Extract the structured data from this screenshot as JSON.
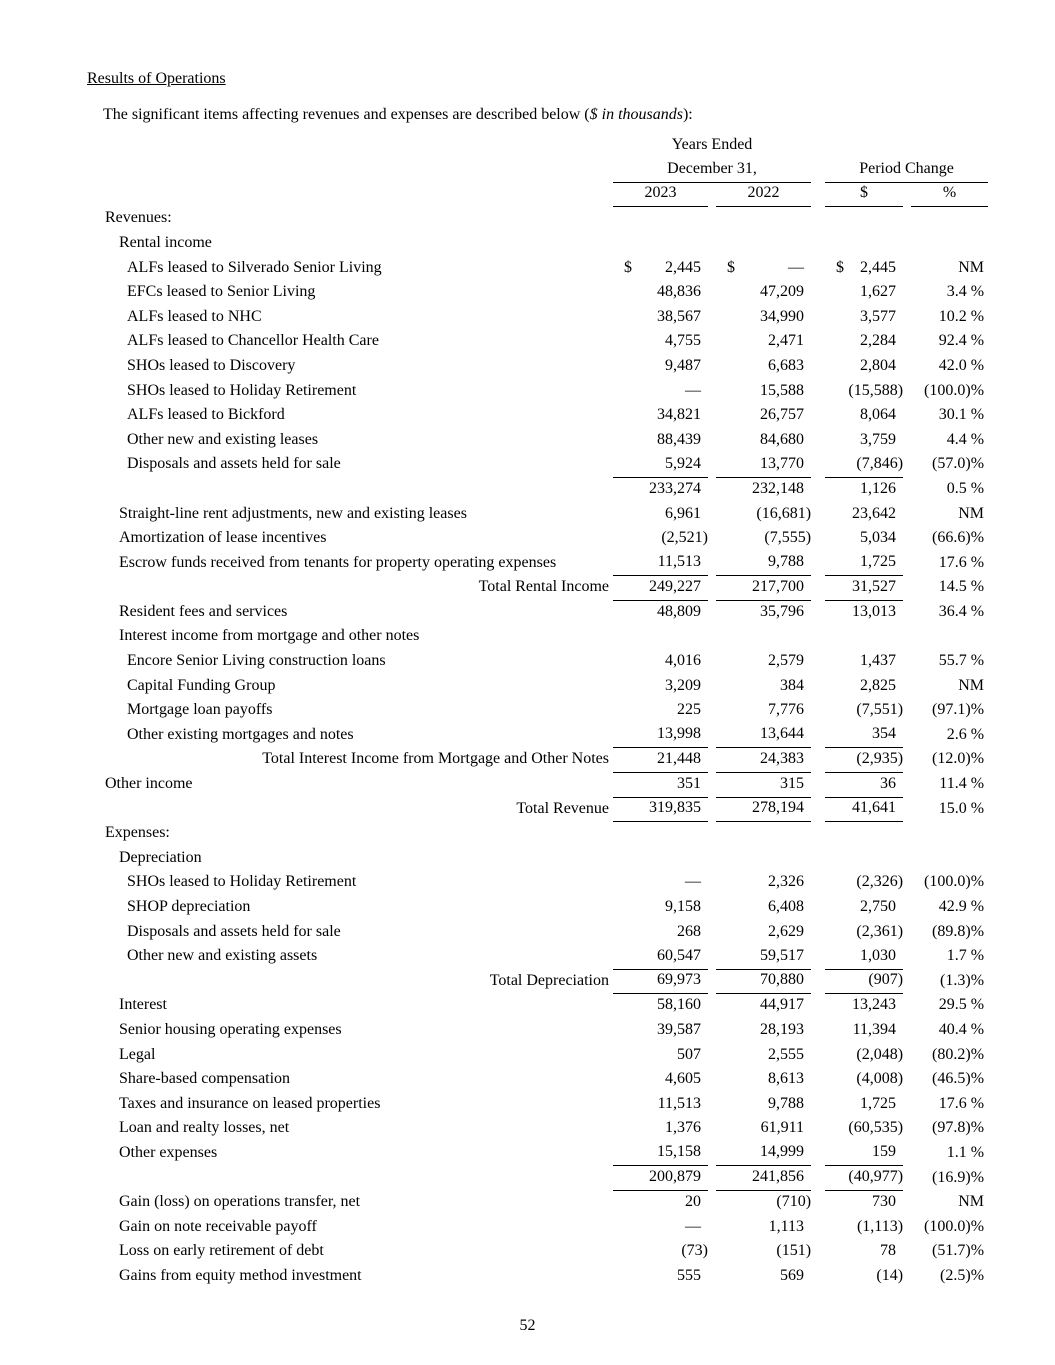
{
  "page": {
    "title": "Results of Operations",
    "intro": {
      "prefix": "The significant items affecting revenues and expenses are described below (",
      "italic": "$ in thousands",
      "suffix": "):"
    },
    "page_number": "52"
  },
  "table": {
    "header": {
      "years_ended": "Years Ended",
      "december": "December 31,",
      "period_change": "Period Change",
      "col_2023": "2023",
      "col_2022": "2022",
      "col_change_dollar": "$",
      "col_change_pct": "%"
    },
    "rows": [
      {
        "type": "section",
        "label": "Revenues:",
        "indent": 0
      },
      {
        "type": "group",
        "label": "Rental income",
        "indent": 1
      },
      {
        "type": "data",
        "label": "ALFs leased to Silverado Senior Living",
        "indent": 2,
        "dollar_sign": true,
        "values": [
          "2,445",
          "—",
          "2,445",
          "NM"
        ]
      },
      {
        "type": "data",
        "label": "EFCs leased to Senior Living",
        "indent": 2,
        "values": [
          "48,836",
          "47,209",
          "1,627",
          "3.4 %"
        ]
      },
      {
        "type": "data",
        "label": "ALFs leased to NHC",
        "indent": 2,
        "values": [
          "38,567",
          "34,990",
          "3,577",
          "10.2 %"
        ]
      },
      {
        "type": "data",
        "label": "ALFs leased to Chancellor Health Care",
        "indent": 2,
        "values": [
          "4,755",
          "2,471",
          "2,284",
          "92.4 %"
        ]
      },
      {
        "type": "data",
        "label": "SHOs leased to Discovery",
        "indent": 2,
        "values": [
          "9,487",
          "6,683",
          "2,804",
          "42.0 %"
        ]
      },
      {
        "type": "data",
        "label": "SHOs leased to Holiday Retirement",
        "indent": 2,
        "values": [
          "—",
          "15,588",
          "(15,588)",
          "(100.0)%"
        ]
      },
      {
        "type": "data",
        "label": "ALFs leased to Bickford",
        "indent": 2,
        "values": [
          "34,821",
          "26,757",
          "8,064",
          "30.1 %"
        ]
      },
      {
        "type": "data",
        "label": "Other new and existing leases",
        "indent": 2,
        "values": [
          "88,439",
          "84,680",
          "3,759",
          "4.4 %"
        ]
      },
      {
        "type": "data",
        "label": "Disposals and assets held for sale",
        "indent": 2,
        "values": [
          "5,924",
          "13,770",
          "(7,846)",
          "(57.0)%"
        ],
        "rule_below": true
      },
      {
        "type": "data",
        "label": "",
        "indent": 0,
        "values": [
          "233,274",
          "232,148",
          "1,126",
          "0.5 %"
        ]
      },
      {
        "type": "data",
        "label": "Straight-line rent adjustments, new and existing leases",
        "indent": 1,
        "values": [
          "6,961",
          "(16,681)",
          "23,642",
          "NM"
        ]
      },
      {
        "type": "data",
        "label": "Amortization of lease incentives",
        "indent": 1,
        "values": [
          "(2,521)",
          "(7,555)",
          "5,034",
          "(66.6)%"
        ]
      },
      {
        "type": "data",
        "label": "Escrow funds received from tenants for property operating expenses",
        "indent": 1,
        "values": [
          "11,513",
          "9,788",
          "1,725",
          "17.6 %"
        ],
        "rule_below": true
      },
      {
        "type": "total",
        "label": "Total Rental Income",
        "indent": 0,
        "values": [
          "249,227",
          "217,700",
          "31,527",
          "14.5 %"
        ],
        "rule_below": true
      },
      {
        "type": "data",
        "label": "Resident fees and services",
        "indent": 1,
        "values": [
          "48,809",
          "35,796",
          "13,013",
          "36.4 %"
        ]
      },
      {
        "type": "group",
        "label": "Interest income from mortgage and other notes",
        "indent": 1
      },
      {
        "type": "data",
        "label": "Encore Senior Living construction loans",
        "indent": 2,
        "values": [
          "4,016",
          "2,579",
          "1,437",
          "55.7 %"
        ]
      },
      {
        "type": "data",
        "label": "Capital Funding Group",
        "indent": 2,
        "values": [
          "3,209",
          "384",
          "2,825",
          "NM"
        ]
      },
      {
        "type": "data",
        "label": "Mortgage loan payoffs",
        "indent": 2,
        "values": [
          "225",
          "7,776",
          "(7,551)",
          "(97.1)%"
        ]
      },
      {
        "type": "data",
        "label": "Other existing mortgages and notes",
        "indent": 2,
        "values": [
          "13,998",
          "13,644",
          "354",
          "2.6 %"
        ],
        "rule_below": true
      },
      {
        "type": "total",
        "label": "Total Interest Income from Mortgage and Other Notes",
        "indent": 0,
        "values": [
          "21,448",
          "24,383",
          "(2,935)",
          "(12.0)%"
        ],
        "rule_below": true
      },
      {
        "type": "data",
        "label": "Other income",
        "indent": 0,
        "values": [
          "351",
          "315",
          "36",
          "11.4 %"
        ],
        "rule_below": true
      },
      {
        "type": "total",
        "label": "Total Revenue",
        "indent": 0,
        "values": [
          "319,835",
          "278,194",
          "41,641",
          "15.0 %"
        ],
        "rule_below": true
      },
      {
        "type": "section",
        "label": "Expenses:",
        "indent": 0
      },
      {
        "type": "group",
        "label": "Depreciation",
        "indent": 1
      },
      {
        "type": "data",
        "label": "SHOs leased to Holiday Retirement",
        "indent": 2,
        "values": [
          "—",
          "2,326",
          "(2,326)",
          "(100.0)%"
        ]
      },
      {
        "type": "data",
        "label": "SHOP depreciation",
        "indent": 2,
        "values": [
          "9,158",
          "6,408",
          "2,750",
          "42.9 %"
        ]
      },
      {
        "type": "data",
        "label": "Disposals and assets held for sale",
        "indent": 2,
        "values": [
          "268",
          "2,629",
          "(2,361)",
          "(89.8)%"
        ]
      },
      {
        "type": "data",
        "label": "Other new and existing assets",
        "indent": 2,
        "values": [
          "60,547",
          "59,517",
          "1,030",
          "1.7 %"
        ],
        "rule_below": true
      },
      {
        "type": "total",
        "label": "Total Depreciation",
        "indent": 0,
        "values": [
          "69,973",
          "70,880",
          "(907)",
          "(1.3)%"
        ],
        "rule_below": true
      },
      {
        "type": "data",
        "label": "Interest",
        "indent": 1,
        "values": [
          "58,160",
          "44,917",
          "13,243",
          "29.5 %"
        ]
      },
      {
        "type": "data",
        "label": "Senior housing operating expenses",
        "indent": 1,
        "values": [
          "39,587",
          "28,193",
          "11,394",
          "40.4 %"
        ]
      },
      {
        "type": "data",
        "label": "Legal",
        "indent": 1,
        "values": [
          "507",
          "2,555",
          "(2,048)",
          "(80.2)%"
        ]
      },
      {
        "type": "data",
        "label": "Share-based compensation",
        "indent": 1,
        "values": [
          "4,605",
          "8,613",
          "(4,008)",
          "(46.5)%"
        ]
      },
      {
        "type": "data",
        "label": "Taxes and insurance on leased properties",
        "indent": 1,
        "values": [
          "11,513",
          "9,788",
          "1,725",
          "17.6 %"
        ]
      },
      {
        "type": "data",
        "label": "Loan and realty losses, net",
        "indent": 1,
        "values": [
          "1,376",
          "61,911",
          "(60,535)",
          "(97.8)%"
        ]
      },
      {
        "type": "data",
        "label": "Other expenses",
        "indent": 1,
        "values": [
          "15,158",
          "14,999",
          "159",
          "1.1 %"
        ],
        "rule_below": true
      },
      {
        "type": "data",
        "label": "",
        "indent": 0,
        "values": [
          "200,879",
          "241,856",
          "(40,977)",
          "(16.9)%"
        ],
        "rule_below": true
      },
      {
        "type": "data",
        "label": "Gain (loss) on operations transfer, net",
        "indent": 1,
        "values": [
          "20",
          "(710)",
          "730",
          "NM"
        ]
      },
      {
        "type": "data",
        "label": "Gain on note receivable payoff",
        "indent": 1,
        "values": [
          "—",
          "1,113",
          "(1,113)",
          "(100.0)%"
        ]
      },
      {
        "type": "data",
        "label": "Loss on early retirement of debt",
        "indent": 1,
        "values": [
          "(73)",
          "(151)",
          "78",
          "(51.7)%"
        ]
      },
      {
        "type": "data",
        "label": "Gains from equity method investment",
        "indent": 1,
        "values": [
          "555",
          "569",
          "(14)",
          "(2.5)%"
        ]
      }
    ]
  }
}
